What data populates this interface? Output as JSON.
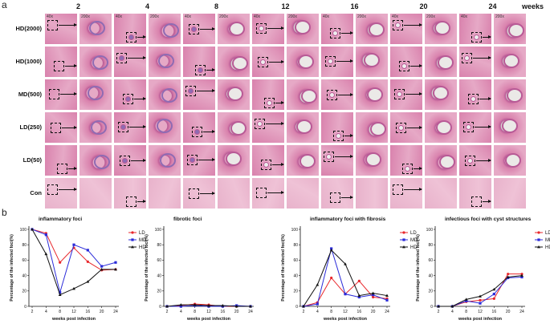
{
  "panel_a": {
    "label": "a",
    "weeks": [
      "2",
      "4",
      "8",
      "12",
      "16",
      "20",
      "24"
    ],
    "weeks_label": "weeks",
    "magnifications": [
      "40x",
      "200x"
    ],
    "rows": [
      "HD(2000)",
      "HD(1000)",
      "MD(500)",
      "LD(250)",
      "LD(50)",
      "Con"
    ],
    "colors": {
      "tissue_light": "#e6a9c6",
      "tissue_mid": "#d982ad",
      "tissue_dark": "#b85a96",
      "inflam": "#8f6bb3",
      "cyst": "#d6d4d2",
      "con": "#e8b2cb"
    }
  },
  "panel_b": {
    "label": "b"
  },
  "chart_data": [
    {
      "type": "line",
      "title": "inflammatory foci",
      "xlabel": "weeks post infection",
      "ylabel": "Percentage of the infected foci(%)",
      "x": [
        2,
        4,
        8,
        12,
        16,
        20,
        24
      ],
      "ylim": [
        0,
        100
      ],
      "yticks": [
        0,
        20,
        40,
        60,
        80,
        100
      ],
      "legend": "right",
      "series": [
        {
          "name": "LD",
          "color": "#e8262b",
          "marker": "circle",
          "values": [
            100,
            95,
            57,
            76,
            58,
            47,
            48
          ]
        },
        {
          "name": "MD",
          "color": "#2b2bd9",
          "marker": "square",
          "values": [
            100,
            93,
            18,
            80,
            73,
            52,
            57
          ]
        },
        {
          "name": "HD",
          "color": "#111111",
          "marker": "triangle",
          "values": [
            100,
            68,
            15,
            23,
            32,
            48,
            48
          ]
        }
      ]
    },
    {
      "type": "line",
      "title": "fibrotic foci",
      "xlabel": "weeks post infection",
      "ylabel": "Percentage of the infected foci(%)",
      "x": [
        2,
        4,
        8,
        12,
        16,
        20,
        24
      ],
      "ylim": [
        0,
        100
      ],
      "yticks": [
        0,
        20,
        40,
        60,
        80,
        100
      ],
      "legend": "none",
      "series": [
        {
          "name": "LD",
          "color": "#e8262b",
          "marker": "circle",
          "values": [
            0,
            1,
            3,
            2,
            0,
            0,
            0
          ]
        },
        {
          "name": "MD",
          "color": "#2b2bd9",
          "marker": "square",
          "values": [
            0,
            0,
            1,
            0,
            0,
            1,
            0
          ]
        },
        {
          "name": "HD",
          "color": "#111111",
          "marker": "triangle",
          "values": [
            0,
            2,
            2,
            1,
            1,
            0,
            0
          ]
        }
      ]
    },
    {
      "type": "line",
      "title": "inflammatory foci with fibrosis",
      "xlabel": "weeks post infection",
      "ylabel": "Percentage of the infected foci(%)",
      "x": [
        2,
        4,
        8,
        12,
        16,
        20,
        24
      ],
      "ylim": [
        0,
        100
      ],
      "yticks": [
        0,
        20,
        40,
        60,
        80,
        100
      ],
      "legend": "right",
      "series": [
        {
          "name": "LD",
          "color": "#e8262b",
          "marker": "circle",
          "values": [
            0,
            5,
            37,
            16,
            33,
            12,
            10
          ]
        },
        {
          "name": "MD",
          "color": "#2b2bd9",
          "marker": "square",
          "values": [
            0,
            3,
            75,
            16,
            12,
            15,
            8
          ]
        },
        {
          "name": "HD",
          "color": "#111111",
          "marker": "triangle",
          "values": [
            0,
            28,
            73,
            55,
            14,
            17,
            14
          ]
        }
      ]
    },
    {
      "type": "line",
      "title": "infectious foci with cyst structures",
      "xlabel": "weeks post infection",
      "ylabel": "Percentage of the infected foci(%)",
      "x": [
        2,
        4,
        8,
        12,
        16,
        20,
        24
      ],
      "ylim": [
        0,
        100
      ],
      "yticks": [
        0,
        20,
        40,
        60,
        80,
        100
      ],
      "legend": "right",
      "series": [
        {
          "name": "LD",
          "color": "#e8262b",
          "marker": "circle",
          "values": [
            0,
            0,
            6,
            8,
            10,
            42,
            42
          ]
        },
        {
          "name": "MD",
          "color": "#2b2bd9",
          "marker": "square",
          "values": [
            0,
            0,
            7,
            4,
            16,
            37,
            38
          ]
        },
        {
          "name": "HD",
          "color": "#111111",
          "marker": "triangle",
          "values": [
            0,
            0,
            9,
            13,
            22,
            38,
            40
          ]
        }
      ]
    }
  ]
}
